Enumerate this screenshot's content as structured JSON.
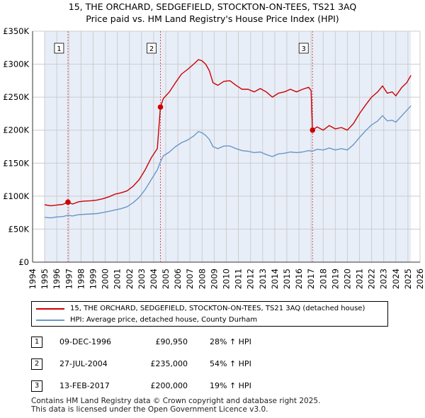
{
  "title": "15, THE ORCHARD, SEDGEFIELD, STOCKTON-ON-TEES, TS21 3AQ",
  "subtitle": "Price paid vs. HM Land Registry's House Price Index (HPI)",
  "colors": {
    "property": "#cc0000",
    "hpi": "#6a96c8",
    "band": "#e8eef8",
    "grid": "#cccccc",
    "vline": "#d05050"
  },
  "chart_data": {
    "type": "line",
    "title": "Price paid vs. HM Land Registry's House Price Index (HPI)",
    "xlim": [
      1994,
      2026
    ],
    "ylim": [
      0,
      350000
    ],
    "y_ticks": [
      0,
      50000,
      100000,
      150000,
      200000,
      250000,
      300000,
      350000
    ],
    "y_tick_labels": [
      "£0",
      "£50K",
      "£100K",
      "£150K",
      "£200K",
      "£250K",
      "£300K",
      "£350K"
    ],
    "x_ticks": [
      1994,
      1995,
      1996,
      1997,
      1998,
      1999,
      2000,
      2001,
      2002,
      2003,
      2004,
      2005,
      2006,
      2007,
      2008,
      2009,
      2010,
      2011,
      2012,
      2013,
      2014,
      2015,
      2016,
      2017,
      2018,
      2019,
      2020,
      2021,
      2022,
      2023,
      2024,
      2025,
      2026
    ],
    "x_tick_labels": [
      "1994",
      "1995",
      "1996",
      "1997",
      "1998",
      "1999",
      "2000",
      "2001",
      "2002",
      "2003",
      "2004",
      "2005",
      "2006",
      "2007",
      "2008",
      "2009",
      "2010",
      "2011",
      "2012",
      "2013",
      "2014",
      "2015",
      "2016",
      "2017",
      "2018",
      "2019",
      "2020",
      "2021",
      "2022",
      "2023",
      "2024",
      "2025",
      "2026"
    ],
    "data_range": [
      1995.0,
      2025.25
    ],
    "series": [
      {
        "name": "15, THE ORCHARD, SEDGEFIELD, STOCKTON-ON-TEES, TS21 3AQ (detached house)",
        "points": [
          [
            1995.0,
            87000
          ],
          [
            1995.5,
            85500
          ],
          [
            1996.0,
            86500
          ],
          [
            1996.5,
            87500
          ],
          [
            1996.92,
            90950
          ],
          [
            1997.3,
            88000
          ],
          [
            1997.8,
            91500
          ],
          [
            1998.3,
            92500
          ],
          [
            1998.8,
            93000
          ],
          [
            1999.3,
            94000
          ],
          [
            1999.8,
            96000
          ],
          [
            2000.3,
            99000
          ],
          [
            2000.8,
            103000
          ],
          [
            2001.3,
            105000
          ],
          [
            2001.8,
            108000
          ],
          [
            2002.3,
            115000
          ],
          [
            2002.8,
            125000
          ],
          [
            2003.3,
            140000
          ],
          [
            2003.8,
            158000
          ],
          [
            2004.3,
            172000
          ],
          [
            2004.56,
            235000
          ],
          [
            2004.8,
            248000
          ],
          [
            2005.3,
            258000
          ],
          [
            2005.8,
            272000
          ],
          [
            2006.3,
            285000
          ],
          [
            2006.8,
            292000
          ],
          [
            2007.3,
            300000
          ],
          [
            2007.7,
            307000
          ],
          [
            2008.0,
            305000
          ],
          [
            2008.3,
            300000
          ],
          [
            2008.6,
            290000
          ],
          [
            2008.9,
            272000
          ],
          [
            2009.3,
            268000
          ],
          [
            2009.8,
            274000
          ],
          [
            2010.3,
            275000
          ],
          [
            2010.8,
            268000
          ],
          [
            2011.3,
            262000
          ],
          [
            2011.8,
            262000
          ],
          [
            2012.3,
            258000
          ],
          [
            2012.8,
            263000
          ],
          [
            2013.3,
            258000
          ],
          [
            2013.8,
            250000
          ],
          [
            2014.3,
            256000
          ],
          [
            2014.8,
            258000
          ],
          [
            2015.3,
            262000
          ],
          [
            2015.8,
            258000
          ],
          [
            2016.3,
            262000
          ],
          [
            2016.8,
            265000
          ],
          [
            2017.0,
            260000
          ],
          [
            2017.12,
            200000
          ],
          [
            2017.5,
            205000
          ],
          [
            2018.0,
            200000
          ],
          [
            2018.5,
            207000
          ],
          [
            2019.0,
            202000
          ],
          [
            2019.5,
            204000
          ],
          [
            2020.0,
            200000
          ],
          [
            2020.5,
            210000
          ],
          [
            2021.0,
            225000
          ],
          [
            2021.5,
            238000
          ],
          [
            2022.0,
            250000
          ],
          [
            2022.5,
            258000
          ],
          [
            2022.9,
            267000
          ],
          [
            2023.3,
            256000
          ],
          [
            2023.7,
            258000
          ],
          [
            2024.0,
            252000
          ],
          [
            2024.5,
            265000
          ],
          [
            2024.9,
            272000
          ],
          [
            2025.25,
            283000
          ]
        ]
      },
      {
        "name": "HPI: Average price, detached house, County Durham",
        "points": [
          [
            1995.0,
            68000
          ],
          [
            1995.5,
            67000
          ],
          [
            1996.0,
            68500
          ],
          [
            1996.5,
            69000
          ],
          [
            1996.92,
            71000
          ],
          [
            1997.3,
            70000
          ],
          [
            1997.8,
            72000
          ],
          [
            1998.3,
            72500
          ],
          [
            1998.8,
            73000
          ],
          [
            1999.3,
            73500
          ],
          [
            1999.8,
            75000
          ],
          [
            2000.3,
            77000
          ],
          [
            2000.8,
            79000
          ],
          [
            2001.3,
            81000
          ],
          [
            2001.8,
            84000
          ],
          [
            2002.3,
            90000
          ],
          [
            2002.8,
            98000
          ],
          [
            2003.3,
            110000
          ],
          [
            2003.8,
            125000
          ],
          [
            2004.3,
            140000
          ],
          [
            2004.56,
            152000
          ],
          [
            2004.8,
            161000
          ],
          [
            2005.3,
            167000
          ],
          [
            2005.8,
            175000
          ],
          [
            2006.3,
            181000
          ],
          [
            2006.8,
            185000
          ],
          [
            2007.3,
            191000
          ],
          [
            2007.7,
            198000
          ],
          [
            2008.0,
            196000
          ],
          [
            2008.3,
            192000
          ],
          [
            2008.6,
            186000
          ],
          [
            2008.9,
            175000
          ],
          [
            2009.3,
            172000
          ],
          [
            2009.8,
            176000
          ],
          [
            2010.3,
            176000
          ],
          [
            2010.8,
            172000
          ],
          [
            2011.3,
            169000
          ],
          [
            2011.8,
            168000
          ],
          [
            2012.3,
            166000
          ],
          [
            2012.8,
            167000
          ],
          [
            2013.3,
            163000
          ],
          [
            2013.8,
            160000
          ],
          [
            2014.3,
            164000
          ],
          [
            2014.8,
            165000
          ],
          [
            2015.3,
            167000
          ],
          [
            2015.8,
            166000
          ],
          [
            2016.3,
            167000
          ],
          [
            2016.8,
            169000
          ],
          [
            2017.12,
            168000
          ],
          [
            2017.5,
            171000
          ],
          [
            2018.0,
            170000
          ],
          [
            2018.5,
            173000
          ],
          [
            2019.0,
            170000
          ],
          [
            2019.5,
            172000
          ],
          [
            2020.0,
            170000
          ],
          [
            2020.5,
            178000
          ],
          [
            2021.0,
            189000
          ],
          [
            2021.5,
            199000
          ],
          [
            2022.0,
            208000
          ],
          [
            2022.5,
            214000
          ],
          [
            2022.9,
            222000
          ],
          [
            2023.3,
            214000
          ],
          [
            2023.7,
            215000
          ],
          [
            2024.0,
            212000
          ],
          [
            2024.5,
            222000
          ],
          [
            2024.9,
            230000
          ],
          [
            2025.25,
            237000
          ]
        ]
      }
    ],
    "sales": [
      {
        "label": "1",
        "x": 1996.92,
        "price": 90950
      },
      {
        "label": "2",
        "x": 2004.56,
        "price": 235000
      },
      {
        "label": "3",
        "x": 2017.12,
        "price": 200000
      }
    ]
  },
  "legend": {
    "property": "15, THE ORCHARD, SEDGEFIELD, STOCKTON-ON-TEES, TS21 3AQ (detached house)",
    "hpi": "HPI: Average price, detached house, County Durham"
  },
  "sales_table": [
    {
      "num": "1",
      "date": "09-DEC-1996",
      "price": "£90,950",
      "hpi": "28% ↑ HPI"
    },
    {
      "num": "2",
      "date": "27-JUL-2004",
      "price": "£235,000",
      "hpi": "54% ↑ HPI"
    },
    {
      "num": "3",
      "date": "13-FEB-2017",
      "price": "£200,000",
      "hpi": "19% ↑ HPI"
    }
  ],
  "footer": {
    "line1": "Contains HM Land Registry data © Crown copyright and database right 2025.",
    "line2": "This data is licensed under the Open Government Licence v3.0."
  }
}
